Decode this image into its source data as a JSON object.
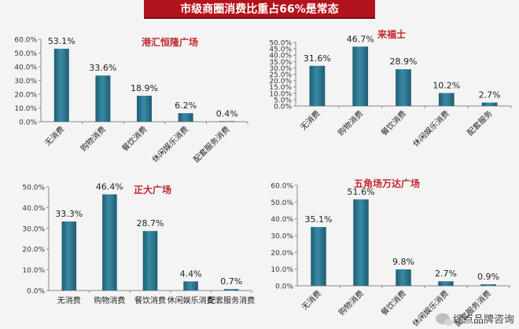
{
  "header": {
    "title": "市级商圈消费比重占66%是常态"
  },
  "watermark": {
    "text": "综点品牌咨询",
    "icon": "wechat-icon"
  },
  "colors": {
    "bar_dark": "#1e5d73",
    "bar_light": "#3a8aa5",
    "title_red": "#c0282e",
    "axis": "#888888"
  },
  "chart_data": [
    {
      "type": "bar",
      "title": "港汇恒隆广场",
      "categories": [
        "无消费",
        "购物消费",
        "餐饮消费",
        "休闲娱乐消费",
        "配套服务消费"
      ],
      "values": [
        53.1,
        33.6,
        18.9,
        6.2,
        0.4
      ],
      "value_labels": [
        "53.1%",
        "33.6%",
        "18.9%",
        "6.2%",
        "0.4%"
      ],
      "yticks": [
        "0.0%",
        "10.0%",
        "20.0%",
        "30.0%",
        "40.0%",
        "50.0%",
        "60.0%"
      ],
      "ylim": [
        0,
        60
      ],
      "xlabel_rotation": -45
    },
    {
      "type": "bar",
      "title": "来福士",
      "categories": [
        "无消费",
        "购物消费",
        "餐饮消费",
        "休闲娱乐消费",
        "配套服务"
      ],
      "values": [
        31.6,
        46.7,
        28.9,
        10.2,
        2.7
      ],
      "value_labels": [
        "31.6%",
        "46.7%",
        "28.9%",
        "10.2%",
        "2.7%"
      ],
      "yticks": [
        "0.0%",
        "5.0%",
        "10.0%",
        "15.0%",
        "20.0%",
        "25.0%",
        "30.0%",
        "35.0%",
        "40.0%",
        "45.0%",
        "50.0%"
      ],
      "ylim": [
        0,
        50
      ],
      "xlabel_rotation": -45
    },
    {
      "type": "bar",
      "title": "正大广场",
      "categories": [
        "无消费",
        "购物消费",
        "餐饮消费",
        "休闲娱乐消费",
        "配套服务消费"
      ],
      "values": [
        33.3,
        46.4,
        28.7,
        4.4,
        0.7
      ],
      "value_labels": [
        "33.3%",
        "46.4%",
        "28.7%",
        "4.4%",
        "0.7%"
      ],
      "yticks": [
        "0.0%",
        "10.0%",
        "20.0%",
        "30.0%",
        "40.0%",
        "50.0%"
      ],
      "ylim": [
        0,
        50
      ],
      "xlabel_rotation": 0
    },
    {
      "type": "bar",
      "title": "五角场万达广场",
      "categories": [
        "无消费",
        "购物消费",
        "餐饮消费",
        "休闲娱乐消费",
        "配套服务消费"
      ],
      "values": [
        35.1,
        51.6,
        9.8,
        2.7,
        0.9
      ],
      "value_labels": [
        "35.1%",
        "51.6%",
        "9.8%",
        "2.7%",
        "0.9%"
      ],
      "yticks": [
        "0.0%",
        "10.0%",
        "20.0%",
        "30.0%",
        "40.0%",
        "50.0%",
        "60.0%"
      ],
      "ylim": [
        0,
        60
      ],
      "xlabel_rotation": -45
    }
  ]
}
